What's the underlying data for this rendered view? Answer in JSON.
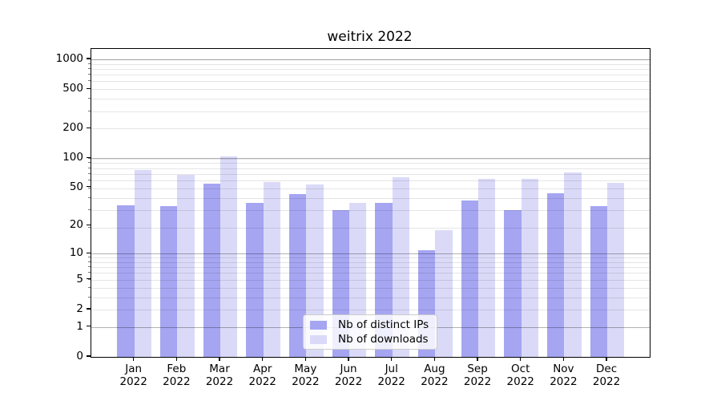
{
  "chart_data": {
    "type": "bar",
    "title": "weitrix 2022",
    "categories": [
      "Jan",
      "Feb",
      "Mar",
      "Apr",
      "May",
      "Jun",
      "Jul",
      "Aug",
      "Sep",
      "Oct",
      "Nov",
      "Dec"
    ],
    "year_label": "2022",
    "series": [
      {
        "key": "distinct-ips",
        "name": "Nb of distinct IPs",
        "color": "#a5a5f2",
        "values": [
          33,
          32,
          55,
          35,
          43,
          29,
          35,
          11,
          37,
          29,
          44,
          32
        ]
      },
      {
        "key": "downloads",
        "name": "Nb of downloads",
        "color": "#dadaf8",
        "values": [
          75,
          67,
          105,
          57,
          54,
          35,
          64,
          18,
          61,
          61,
          71,
          56
        ]
      }
    ],
    "yscale": "log1p",
    "ylim": [
      0,
      1300
    ],
    "yticks": [
      0,
      1,
      2,
      5,
      10,
      20,
      50,
      100,
      200,
      500,
      1000
    ],
    "major_gridline_values": [
      1,
      10,
      100,
      1000
    ],
    "grid": "on",
    "legend_position": "lower-center-inside",
    "background_color": "#ffffff",
    "spine_color": "#000000"
  }
}
